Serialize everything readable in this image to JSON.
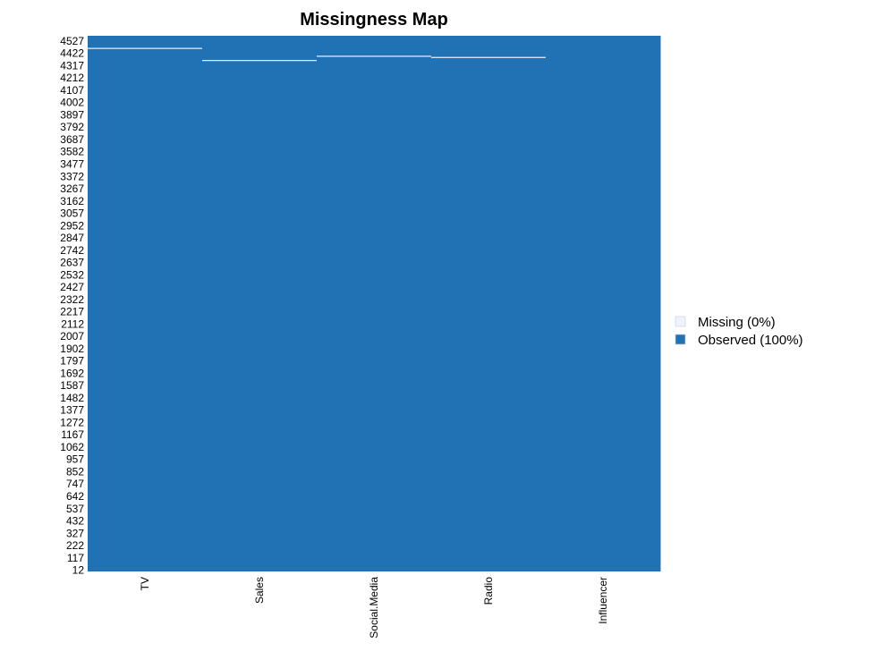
{
  "chart_data": {
    "type": "heatmap",
    "title": "Missingness Map",
    "xlabel": "",
    "ylabel": "",
    "columns": [
      "TV",
      "Sales",
      "Social.Media",
      "Radio",
      "Influencer"
    ],
    "row_tick_labels": [
      "4527",
      "4422",
      "4317",
      "4212",
      "4107",
      "4002",
      "3897",
      "3792",
      "3687",
      "3582",
      "3477",
      "3372",
      "3267",
      "3162",
      "3057",
      "2952",
      "2847",
      "2742",
      "2637",
      "2532",
      "2427",
      "2322",
      "2217",
      "2112",
      "2007",
      "1902",
      "1797",
      "1692",
      "1587",
      "1482",
      "1377",
      "1272",
      "1167",
      "1062",
      "957",
      "852",
      "747",
      "642",
      "537",
      "432",
      "327",
      "222",
      "117",
      "12"
    ],
    "row_range": [
      1,
      4572
    ],
    "missing_rows": [
      {
        "column": "TV",
        "row": 4464
      },
      {
        "column": "Sales",
        "row": 4361
      },
      {
        "column": "Social.Media",
        "row": 4397
      },
      {
        "column": "Radio",
        "row": 4387
      }
    ],
    "legend": {
      "position": "right",
      "items": [
        {
          "label": "Missing (0%)",
          "color": "#EFF3FF"
        },
        {
          "label": "Observed (100%)",
          "color": "#2171B5"
        }
      ]
    },
    "colors": {
      "observed": "#2171B5",
      "missing": "#EFF3FF"
    }
  }
}
